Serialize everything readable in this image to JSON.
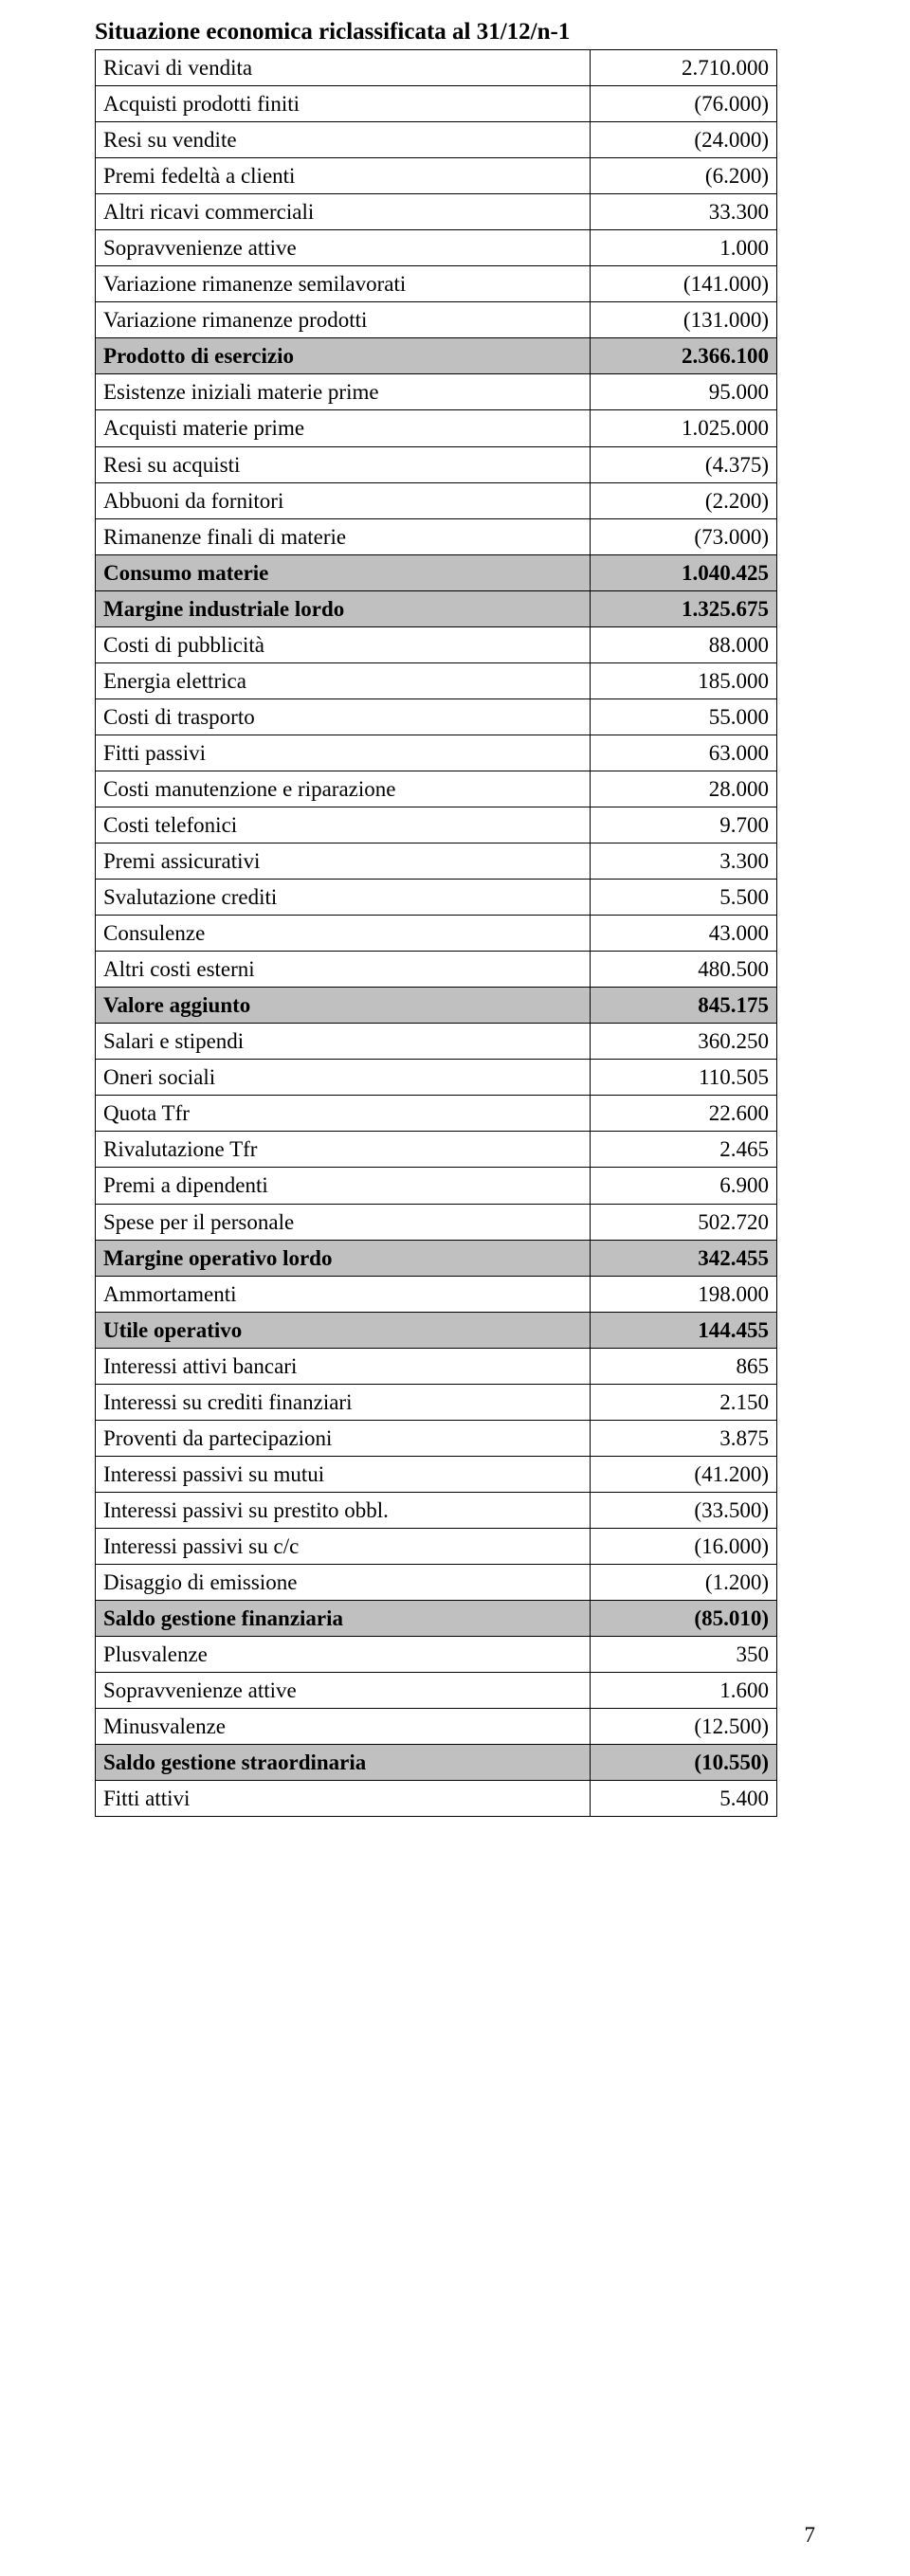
{
  "title": "Situazione economica riclassificata al 31/12/n-1",
  "pageNumber": "7",
  "rows": [
    {
      "label": "Ricavi di vendita",
      "value": "2.710.000",
      "bold": false,
      "shaded": false
    },
    {
      "label": "Acquisti prodotti finiti",
      "value": "(76.000)",
      "bold": false,
      "shaded": false
    },
    {
      "label": "Resi su vendite",
      "value": "(24.000)",
      "bold": false,
      "shaded": false
    },
    {
      "label": "Premi fedeltà a clienti",
      "value": "(6.200)",
      "bold": false,
      "shaded": false
    },
    {
      "label": "Altri ricavi commerciali",
      "value": "33.300",
      "bold": false,
      "shaded": false
    },
    {
      "label": "Sopravvenienze attive",
      "value": "1.000",
      "bold": false,
      "shaded": false
    },
    {
      "label": "Variazione rimanenze semilavorati",
      "value": "(141.000)",
      "bold": false,
      "shaded": false
    },
    {
      "label": "Variazione rimanenze prodotti",
      "value": "(131.000)",
      "bold": false,
      "shaded": false
    },
    {
      "label": "Prodotto di esercizio",
      "value": "2.366.100",
      "bold": true,
      "shaded": true
    },
    {
      "label": "Esistenze iniziali materie prime",
      "value": "95.000",
      "bold": false,
      "shaded": false
    },
    {
      "label": "Acquisti materie prime",
      "value": "1.025.000",
      "bold": false,
      "shaded": false
    },
    {
      "label": "Resi su acquisti",
      "value": "(4.375)",
      "bold": false,
      "shaded": false
    },
    {
      "label": "Abbuoni da fornitori",
      "value": "(2.200)",
      "bold": false,
      "shaded": false
    },
    {
      "label": "Rimanenze finali di materie",
      "value": "(73.000)",
      "bold": false,
      "shaded": false
    },
    {
      "label": "Consumo materie",
      "value": "1.040.425",
      "bold": true,
      "shaded": true
    },
    {
      "label": "Margine industriale lordo",
      "value": "1.325.675",
      "bold": true,
      "shaded": true
    },
    {
      "label": "Costi di pubblicità",
      "value": "88.000",
      "bold": false,
      "shaded": false
    },
    {
      "label": "Energia elettrica",
      "value": "185.000",
      "bold": false,
      "shaded": false
    },
    {
      "label": "Costi di trasporto",
      "value": "55.000",
      "bold": false,
      "shaded": false
    },
    {
      "label": "Fitti passivi",
      "value": "63.000",
      "bold": false,
      "shaded": false
    },
    {
      "label": "Costi manutenzione e riparazione",
      "value": "28.000",
      "bold": false,
      "shaded": false
    },
    {
      "label": "Costi telefonici",
      "value": "9.700",
      "bold": false,
      "shaded": false
    },
    {
      "label": "Premi assicurativi",
      "value": "3.300",
      "bold": false,
      "shaded": false
    },
    {
      "label": "Svalutazione crediti",
      "value": "5.500",
      "bold": false,
      "shaded": false
    },
    {
      "label": "Consulenze",
      "value": "43.000",
      "bold": false,
      "shaded": false
    },
    {
      "label": "Altri costi esterni",
      "value": "480.500",
      "bold": false,
      "shaded": false
    },
    {
      "label": "Valore aggiunto",
      "value": "845.175",
      "bold": true,
      "shaded": true
    },
    {
      "label": "Salari e stipendi",
      "value": "360.250",
      "bold": false,
      "shaded": false
    },
    {
      "label": "Oneri sociali",
      "value": "110.505",
      "bold": false,
      "shaded": false
    },
    {
      "label": "Quota Tfr",
      "value": "22.600",
      "bold": false,
      "shaded": false
    },
    {
      "label": "Rivalutazione Tfr",
      "value": "2.465",
      "bold": false,
      "shaded": false
    },
    {
      "label": "Premi a dipendenti",
      "value": "6.900",
      "bold": false,
      "shaded": false
    },
    {
      "label": "Spese per il personale",
      "value": "502.720",
      "bold": false,
      "shaded": false
    },
    {
      "label": "Margine operativo lordo",
      "value": "342.455",
      "bold": true,
      "shaded": true
    },
    {
      "label": "Ammortamenti",
      "value": "198.000",
      "bold": false,
      "shaded": false
    },
    {
      "label": "Utile operativo",
      "value": "144.455",
      "bold": true,
      "shaded": true
    },
    {
      "label": "Interessi attivi bancari",
      "value": "865",
      "bold": false,
      "shaded": false
    },
    {
      "label": "Interessi su crediti finanziari",
      "value": "2.150",
      "bold": false,
      "shaded": false
    },
    {
      "label": "Proventi da partecipazioni",
      "value": "3.875",
      "bold": false,
      "shaded": false
    },
    {
      "label": "Interessi passivi su mutui",
      "value": "(41.200)",
      "bold": false,
      "shaded": false
    },
    {
      "label": "Interessi passivi su prestito obbl.",
      "value": "(33.500)",
      "bold": false,
      "shaded": false
    },
    {
      "label": "Interessi passivi su c/c",
      "value": "(16.000)",
      "bold": false,
      "shaded": false
    },
    {
      "label": "Disaggio di emissione",
      "value": "(1.200)",
      "bold": false,
      "shaded": false
    },
    {
      "label": "Saldo gestione finanziaria",
      "value": "(85.010)",
      "bold": true,
      "shaded": true
    },
    {
      "label": "Plusvalenze",
      "value": "350",
      "bold": false,
      "shaded": false
    },
    {
      "label": "Sopravvenienze attive",
      "value": "1.600",
      "bold": false,
      "shaded": false
    },
    {
      "label": "Minusvalenze",
      "value": "(12.500)",
      "bold": false,
      "shaded": false
    },
    {
      "label": "Saldo gestione straordinaria",
      "value": "(10.550)",
      "bold": true,
      "shaded": true
    },
    {
      "label": "Fitti attivi",
      "value": "5.400",
      "bold": false,
      "shaded": false
    }
  ]
}
